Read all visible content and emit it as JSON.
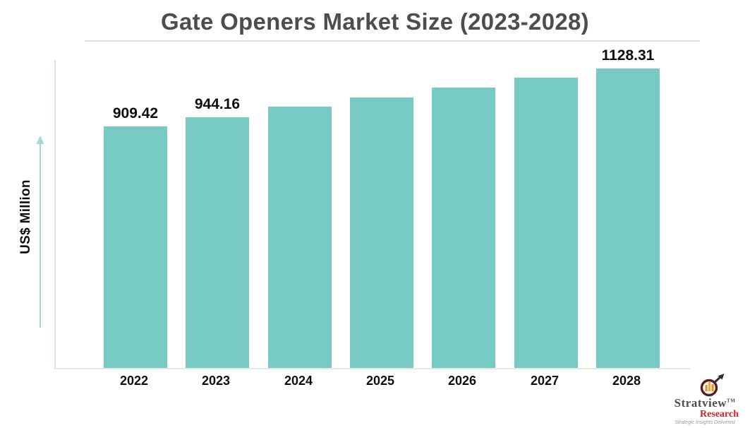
{
  "chart": {
    "title": "Gate Openers Market Size (2023-2028)",
    "y_axis_label": "US$ Million"
  },
  "chart_data": {
    "type": "bar",
    "title": "Gate Openers Market Size (2023-2028)",
    "categories": [
      "2022",
      "2023",
      "2024",
      "2025",
      "2026",
      "2027",
      "2028"
    ],
    "values": [
      909.42,
      944.16,
      983,
      1018,
      1057,
      1092,
      1128.31
    ],
    "bar_labels": [
      "909.42",
      "944.16",
      "",
      "",
      "",
      "",
      "1128.31"
    ],
    "xlabel": "",
    "ylabel": "US$ Million",
    "ylim": [
      0,
      1165
    ],
    "grid": false,
    "legend": false,
    "bar_color": "#78cbc5",
    "axis_color": "#d9e8e6",
    "arrow_color": "#a7d6d2"
  },
  "branding": {
    "name_primary": "Stratview",
    "trademark": "TM",
    "name_secondary": "Research",
    "tagline": "Strategic Insights Delivered",
    "accent_red": "#cc2229"
  }
}
